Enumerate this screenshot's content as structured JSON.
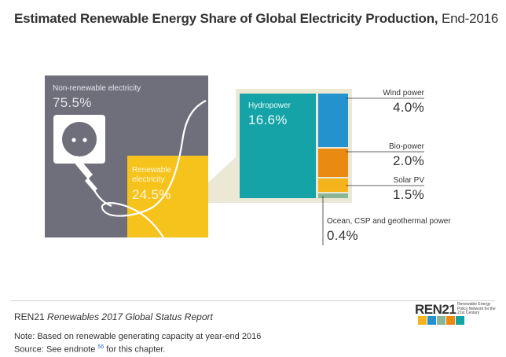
{
  "header": {
    "title": "Estimated Renewable Energy Share of Global Electricity Production,",
    "title_year": "End-2016"
  },
  "chart_data": {
    "type": "treemap",
    "title": "Estimated Renewable Energy Share of Global Electricity Production, End-2016",
    "level1": [
      {
        "label": "Non-renewable electricity",
        "value_label": "75.5%",
        "value": 75.5,
        "color": "#6f6e7b"
      },
      {
        "label": "Renewable electricity",
        "value_label": "24.5%",
        "value": 24.5,
        "color": "#f6c31c"
      }
    ],
    "renewable_breakdown": [
      {
        "label": "Hydropower",
        "value_label": "16.6%",
        "value": 16.6,
        "color": "#16a3a8"
      },
      {
        "label": "Wind power",
        "value_label": "4.0%",
        "value": 4.0,
        "color": "#2492cf"
      },
      {
        "label": "Bio-power",
        "value_label": "2.0%",
        "value": 2.0,
        "color": "#ea8a10"
      },
      {
        "label": "Solar PV",
        "value_label": "1.5%",
        "value": 1.5,
        "color": "#f5b41c"
      },
      {
        "label": "Ocean, CSP and geothermal power",
        "value_label": "0.4%",
        "value": 0.4,
        "color": "#8ab597"
      }
    ],
    "frame_color": "#ebe8d6"
  },
  "footer": {
    "publisher": "REN21",
    "report": "Renewables 2017 Global Status Report",
    "note": "Note: Based on renewable generating capacity at year-end 2016",
    "source_prefix": "Source: See endnote",
    "endnote": "56",
    "source_suffix": "for this chapter.",
    "logo_word": "REN21",
    "logo_tagline": "Renewable Energy Policy Network for the 21st Century"
  }
}
